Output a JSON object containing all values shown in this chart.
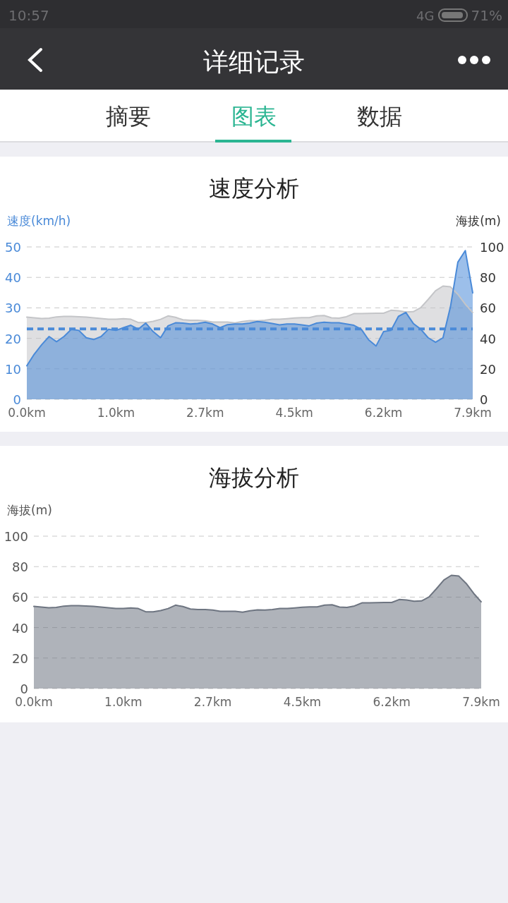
{
  "chart_data": [
    {
      "type": "other",
      "title": "详细记录",
      "annotations": [
        "10:57",
        "4G",
        "71%",
        "摘要",
        "图表",
        "数据"
      ]
    },
    {
      "type": "area",
      "title": "速度分析",
      "ylabel": "速度(km/h)",
      "y2label": "海拔(m)",
      "categories": [
        "0.0km",
        null,
        null,
        null,
        null,
        null,
        null,
        null,
        null,
        null,
        null,
        null,
        "1.0km",
        null,
        null,
        null,
        null,
        null,
        null,
        null,
        null,
        null,
        null,
        null,
        "2.7km",
        null,
        null,
        null,
        null,
        null,
        null,
        null,
        null,
        null,
        null,
        null,
        "4.5km",
        null,
        null,
        null,
        null,
        null,
        null,
        null,
        null,
        null,
        null,
        null,
        "6.2km",
        null,
        null,
        null,
        null,
        null,
        null,
        null,
        null,
        null,
        null,
        null,
        "7.9km"
      ],
      "series": [
        {
          "type": "area",
          "axis": "y2",
          "color": "#c4c5c8",
          "values": [
            53.9,
            53.5,
            53.0,
            53.2,
            54.1,
            54.4,
            54.4,
            54.2,
            53.9,
            53.5,
            53.0,
            52.5,
            52.5,
            52.9,
            52.5,
            50.4,
            50.4,
            51.2,
            52.5,
            54.7,
            53.8,
            52.2,
            51.9,
            51.8,
            51.5,
            50.7,
            50.7,
            50.7,
            50.1,
            51.0,
            51.6,
            51.5,
            51.9,
            52.5,
            52.5,
            52.9,
            53.3,
            53.6,
            53.6,
            54.7,
            55.0,
            53.5,
            53.2,
            54.2,
            56.2,
            56.2,
            56.4,
            56.5,
            56.5,
            58.4,
            58.1,
            57.3,
            57.5,
            60.1,
            65.5,
            71.2,
            74.3,
            73.8,
            68.9,
            62.4,
            56.9
          ]
        },
        {
          "type": "area",
          "color": "#4a8ad8",
          "values": [
            11.0,
            14.8,
            17.9,
            20.6,
            18.9,
            20.6,
            23.0,
            22.6,
            20.2,
            19.6,
            20.6,
            23.0,
            22.6,
            23.5,
            24.3,
            23.0,
            25.0,
            22.2,
            20.2,
            24.1,
            25.1,
            25.0,
            24.7,
            24.9,
            25.3,
            24.7,
            23.5,
            24.5,
            24.7,
            24.7,
            25.0,
            25.5,
            25.3,
            24.9,
            24.4,
            24.7,
            24.7,
            24.4,
            24.1,
            25.0,
            25.3,
            25.1,
            25.1,
            24.7,
            24.3,
            23.0,
            19.5,
            17.5,
            22.2,
            22.6,
            27.2,
            28.5,
            24.9,
            23.0,
            20.2,
            18.7,
            20.2,
            30.3,
            45.0,
            48.8,
            34.9
          ]
        }
      ],
      "ylim": [
        0,
        50
      ],
      "yticks": [
        0,
        10,
        20,
        30,
        40,
        50
      ],
      "y2lim": [
        0,
        100
      ],
      "y2ticks": [
        0,
        20,
        40,
        60,
        80,
        100
      ],
      "grid": "y",
      "ref_lines": [
        {
          "axis": "y",
          "value": 23.1,
          "color": "#4a8ad8",
          "line_style": "dashed"
        }
      ]
    },
    {
      "type": "area",
      "title": "海拔分析",
      "ylabel": "海拔(m)",
      "categories": [
        "0.0km",
        null,
        null,
        null,
        null,
        null,
        null,
        null,
        null,
        null,
        null,
        null,
        "1.0km",
        null,
        null,
        null,
        null,
        null,
        null,
        null,
        null,
        null,
        null,
        null,
        "2.7km",
        null,
        null,
        null,
        null,
        null,
        null,
        null,
        null,
        null,
        null,
        null,
        "4.5km",
        null,
        null,
        null,
        null,
        null,
        null,
        null,
        null,
        null,
        null,
        null,
        "6.2km",
        null,
        null,
        null,
        null,
        null,
        null,
        null,
        null,
        null,
        null,
        null,
        "7.9km"
      ],
      "series": [
        {
          "type": "area",
          "color": "#6e7581",
          "values": [
            53.9,
            53.5,
            53.0,
            53.2,
            54.1,
            54.4,
            54.4,
            54.2,
            53.9,
            53.5,
            53.0,
            52.5,
            52.5,
            52.9,
            52.5,
            50.4,
            50.4,
            51.2,
            52.5,
            54.7,
            53.8,
            52.2,
            51.9,
            51.8,
            51.5,
            50.7,
            50.7,
            50.7,
            50.1,
            51.0,
            51.6,
            51.5,
            51.9,
            52.5,
            52.5,
            52.9,
            53.3,
            53.6,
            53.6,
            54.7,
            55.0,
            53.5,
            53.2,
            54.2,
            56.2,
            56.2,
            56.4,
            56.5,
            56.5,
            58.4,
            58.1,
            57.3,
            57.5,
            60.1,
            65.5,
            71.2,
            74.3,
            73.8,
            68.9,
            62.4,
            56.9
          ]
        }
      ],
      "ylim": [
        0,
        100
      ],
      "yticks": [
        0,
        20,
        40,
        60,
        80,
        100
      ],
      "grid": "y"
    }
  ]
}
